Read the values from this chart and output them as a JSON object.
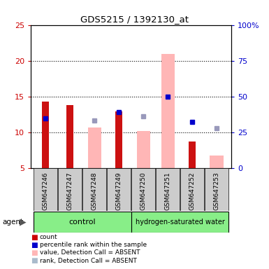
{
  "title": "GDS5215 / 1392130_at",
  "samples": [
    "GSM647246",
    "GSM647247",
    "GSM647248",
    "GSM647249",
    "GSM647250",
    "GSM647251",
    "GSM647252",
    "GSM647253"
  ],
  "red_bars": [
    14.3,
    13.8,
    null,
    13.0,
    null,
    null,
    8.7,
    null
  ],
  "pink_bars": [
    null,
    null,
    10.7,
    null,
    10.2,
    21.0,
    null,
    6.8
  ],
  "blue_squares": [
    12.0,
    null,
    null,
    12.9,
    null,
    15.0,
    11.5,
    null
  ],
  "lavender_squares": [
    null,
    null,
    11.7,
    null,
    12.3,
    null,
    null,
    10.6
  ],
  "ylim_left": [
    5,
    25
  ],
  "ylim_right": [
    0,
    100
  ],
  "yticks_left": [
    5,
    10,
    15,
    20,
    25
  ],
  "ytick_labels_right": [
    "0",
    "25",
    "50",
    "75",
    "100%"
  ],
  "left_axis_color": "#cc0000",
  "right_axis_color": "#0000cc",
  "pink_bar_width": 0.55,
  "red_bar_width": 0.28,
  "grid_lines": [
    10,
    15,
    20
  ],
  "sample_box_color": "#cccccc",
  "group_color": "#88ee88",
  "legend_colors": [
    "#cc0000",
    "#0000cc",
    "#ffb6b6",
    "#aabbcc"
  ],
  "legend_labels": [
    "count",
    "percentile rank within the sample",
    "value, Detection Call = ABSENT",
    "rank, Detection Call = ABSENT"
  ]
}
